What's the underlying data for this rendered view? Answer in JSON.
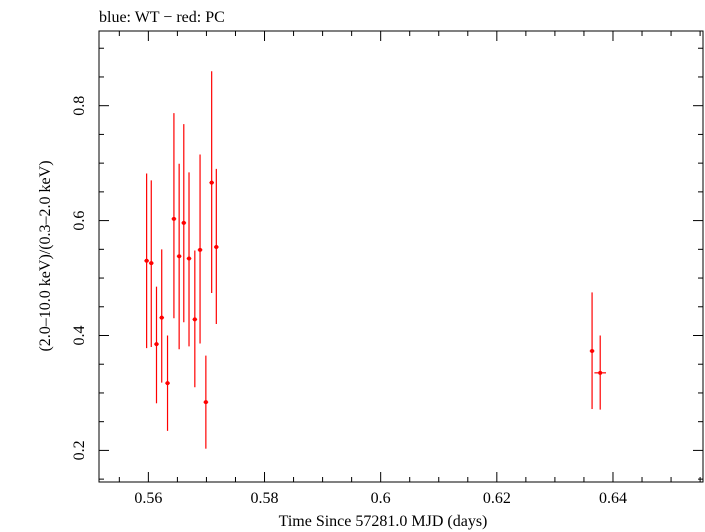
{
  "chart_data": {
    "type": "scatter",
    "title": "blue: WT − red: PC",
    "xlabel": "Time Since 57281.0 MJD (days)",
    "ylabel": "(2.0–10.0 keV)/(0.3–2.0 keV)",
    "xlim": [
      0.5515,
      0.6555
    ],
    "ylim": [
      0.145,
      0.93
    ],
    "x_ticks": [
      0.56,
      0.58,
      0.6,
      0.62,
      0.64
    ],
    "x_tick_labels": [
      "0.56",
      "0.58",
      "0.6",
      "0.62",
      "0.64"
    ],
    "y_ticks": [
      0.2,
      0.4,
      0.6,
      0.8
    ],
    "y_tick_labels": [
      "0.2",
      "0.4",
      "0.6",
      "0.8"
    ],
    "grid": false,
    "series": [
      {
        "name": "PC",
        "color": "#ff0000",
        "points": [
          {
            "x": 0.5597,
            "y": 0.53,
            "xerr": 0.0004,
            "ylo": 0.378,
            "yhi": 0.682
          },
          {
            "x": 0.5605,
            "y": 0.526,
            "xerr": 0.0004,
            "ylo": 0.38,
            "yhi": 0.67
          },
          {
            "x": 0.5614,
            "y": 0.385,
            "xerr": 0.0004,
            "ylo": 0.282,
            "yhi": 0.485
          },
          {
            "x": 0.5623,
            "y": 0.431,
            "xerr": 0.0004,
            "ylo": 0.318,
            "yhi": 0.55
          },
          {
            "x": 0.5633,
            "y": 0.317,
            "xerr": 0.0004,
            "ylo": 0.234,
            "yhi": 0.4
          },
          {
            "x": 0.5644,
            "y": 0.603,
            "xerr": 0.0004,
            "ylo": 0.43,
            "yhi": 0.787
          },
          {
            "x": 0.5653,
            "y": 0.538,
            "xerr": 0.0004,
            "ylo": 0.376,
            "yhi": 0.699
          },
          {
            "x": 0.5661,
            "y": 0.596,
            "xerr": 0.0004,
            "ylo": 0.423,
            "yhi": 0.768
          },
          {
            "x": 0.567,
            "y": 0.534,
            "xerr": 0.0004,
            "ylo": 0.381,
            "yhi": 0.684
          },
          {
            "x": 0.568,
            "y": 0.428,
            "xerr": 0.0004,
            "ylo": 0.31,
            "yhi": 0.548
          },
          {
            "x": 0.5689,
            "y": 0.549,
            "xerr": 0.0004,
            "ylo": 0.386,
            "yhi": 0.715
          },
          {
            "x": 0.5699,
            "y": 0.284,
            "xerr": 0.0004,
            "ylo": 0.203,
            "yhi": 0.365
          },
          {
            "x": 0.5709,
            "y": 0.666,
            "xerr": 0.0004,
            "ylo": 0.474,
            "yhi": 0.86
          },
          {
            "x": 0.5717,
            "y": 0.554,
            "xerr": 0.0004,
            "ylo": 0.42,
            "yhi": 0.69
          },
          {
            "x": 0.6364,
            "y": 0.373,
            "xerr": 0.0004,
            "ylo": 0.272,
            "yhi": 0.475
          },
          {
            "x": 0.6378,
            "y": 0.335,
            "xerr": 0.001,
            "ylo": 0.271,
            "yhi": 0.4
          }
        ]
      }
    ]
  }
}
